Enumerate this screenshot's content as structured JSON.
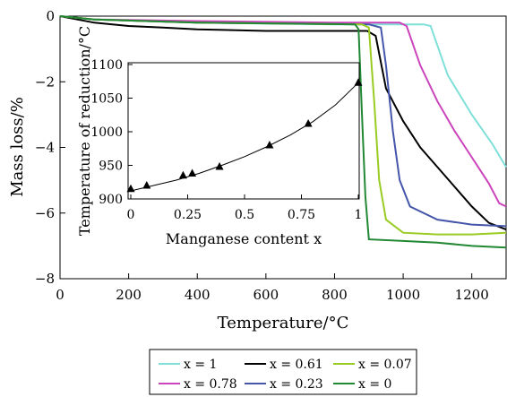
{
  "chart_data": [
    {
      "type": "line",
      "xlabel": "Temperature/°C",
      "ylabel": "Mass loss/%",
      "xlim": [
        0,
        1300
      ],
      "ylim": [
        -8,
        0
      ],
      "xticks": [
        0,
        200,
        400,
        600,
        800,
        1000,
        1200
      ],
      "yticks": [
        0,
        -2,
        -4,
        -6,
        -8
      ],
      "legend_position": "bottom",
      "series": [
        {
          "name": "x = 1",
          "color": "#7fe0d8",
          "x": [
            0,
            100,
            400,
            800,
            1060,
            1080,
            1130,
            1200,
            1260,
            1300
          ],
          "y": [
            0,
            -0.1,
            -0.2,
            -0.25,
            -0.25,
            -0.3,
            -1.8,
            -3.0,
            -3.9,
            -4.6
          ]
        },
        {
          "name": "x = 0.78",
          "color": "#cc44bb",
          "x": [
            0,
            100,
            400,
            800,
            990,
            1010,
            1050,
            1100,
            1150,
            1200,
            1250,
            1280,
            1300
          ],
          "y": [
            0,
            -0.1,
            -0.15,
            -0.2,
            -0.2,
            -0.3,
            -1.5,
            -2.6,
            -3.5,
            -4.3,
            -5.1,
            -5.7,
            -5.8
          ]
        },
        {
          "name": "x = 0.61",
          "color": "#000000",
          "x": [
            0,
            50,
            100,
            200,
            300,
            400,
            600,
            850,
            895,
            920,
            950,
            1000,
            1050,
            1100,
            1150,
            1200,
            1250,
            1300
          ],
          "y": [
            0,
            -0.1,
            -0.2,
            -0.3,
            -0.35,
            -0.4,
            -0.45,
            -0.45,
            -0.45,
            -0.6,
            -2.2,
            -3.2,
            -4.0,
            -4.6,
            -5.2,
            -5.8,
            -6.3,
            -6.5
          ]
        },
        {
          "name": "x = 0.23",
          "color": "#4455aa",
          "x": [
            0,
            100,
            400,
            900,
            935,
            950,
            970,
            990,
            1020,
            1100,
            1200,
            1300
          ],
          "y": [
            0,
            -0.1,
            -0.2,
            -0.25,
            -0.35,
            -1.5,
            -3.5,
            -5.0,
            -5.8,
            -6.2,
            -6.35,
            -6.4
          ]
        },
        {
          "name": "x = 0.07",
          "color": "#99cc22",
          "x": [
            0,
            100,
            400,
            880,
            900,
            915,
            930,
            950,
            1000,
            1100,
            1200,
            1300
          ],
          "y": [
            0,
            -0.1,
            -0.2,
            -0.25,
            -0.35,
            -2.5,
            -5.0,
            -6.2,
            -6.6,
            -6.65,
            -6.65,
            -6.6
          ]
        },
        {
          "name": "x = 0",
          "color": "#228833",
          "x": [
            0,
            100,
            400,
            860,
            870,
            880,
            890,
            900,
            1000,
            1100,
            1200,
            1300
          ],
          "y": [
            0,
            -0.1,
            -0.2,
            -0.25,
            -0.4,
            -3.0,
            -5.5,
            -6.8,
            -6.85,
            -6.9,
            -7.0,
            -7.05
          ]
        }
      ]
    },
    {
      "type": "scatter",
      "xlabel": "Manganese content x",
      "ylabel": "Temperature of reduction/°C",
      "xlim": [
        0,
        1
      ],
      "ylim": [
        900,
        1100
      ],
      "xticks": [
        "0",
        "0.25",
        "0.5",
        "0.75",
        "1"
      ],
      "yticks": [
        "900",
        "950",
        "1000",
        "1050",
        "1100"
      ],
      "marker": "triangle",
      "points": {
        "x": [
          0,
          0.07,
          0.23,
          0.27,
          0.39,
          0.61,
          0.78,
          1
        ],
        "y": [
          915,
          920,
          935,
          938,
          948,
          980,
          1012,
          1073
        ]
      },
      "fit_curve": {
        "x": [
          0,
          0.1,
          0.2,
          0.3,
          0.4,
          0.5,
          0.6,
          0.7,
          0.8,
          0.9,
          1
        ],
        "y": [
          912,
          920,
          928,
          938,
          950,
          963,
          978,
          995,
          1015,
          1040,
          1073
        ]
      }
    }
  ]
}
